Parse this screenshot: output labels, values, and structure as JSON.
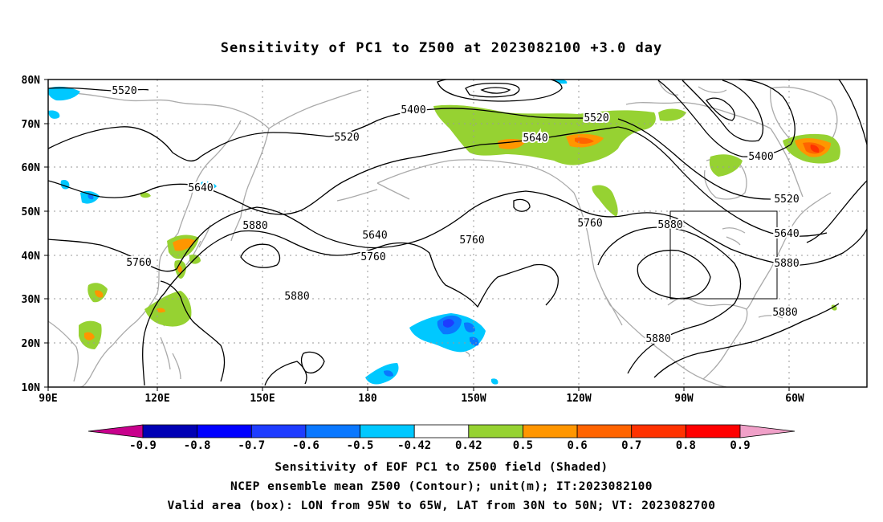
{
  "title": "Sensitivity of PC1 to Z500 at 2023082100 +3.0 day",
  "lat_labels": [
    "80N",
    "70N",
    "60N",
    "50N",
    "40N",
    "30N",
    "20N",
    "10N"
  ],
  "lon_labels": [
    "90E",
    "120E",
    "150E",
    "180",
    "150W",
    "120W",
    "90W",
    "60W"
  ],
  "contour_labels": [
    {
      "text": "5520"
    },
    {
      "text": "5400"
    },
    {
      "text": "5520"
    },
    {
      "text": "5520"
    },
    {
      "text": "5640"
    },
    {
      "text": "5640"
    },
    {
      "text": "5400"
    },
    {
      "text": "5520"
    },
    {
      "text": "5880"
    },
    {
      "text": "5640"
    },
    {
      "text": "5760"
    },
    {
      "text": "5880"
    },
    {
      "text": "5760"
    },
    {
      "text": "5880"
    },
    {
      "text": "5640"
    },
    {
      "text": "5760"
    },
    {
      "text": "5760"
    },
    {
      "text": "5880"
    },
    {
      "text": "5880"
    },
    {
      "text": "5880"
    }
  ],
  "colorbar": {
    "colors": [
      "#c8008c",
      "#0000b4",
      "#0000ff",
      "#1e3cff",
      "#0a78ff",
      "#00c8ff",
      "#ffffff",
      "#96d232",
      "#ff9600",
      "#ff6400",
      "#ff3200",
      "#ff0000",
      "#f0a0c8"
    ],
    "labels": [
      "-0.9",
      "-0.8",
      "-0.7",
      "-0.6",
      "-0.5",
      "-0.42",
      "0.42",
      "0.5",
      "0.6",
      "0.7",
      "0.8",
      "0.9"
    ]
  },
  "captions": [
    "Sensitivity of EOF PC1 to Z500 field (Shaded)",
    "NCEP ensemble mean Z500 (Contour); unit(m); IT:2023082100",
    "Valid area (box): LON from 95W to 65W, LAT from 30N to 50N; VT: 2023082700"
  ],
  "valid_box": {
    "lon_min": -95,
    "lon_max": -65,
    "lat_min": 30,
    "lat_max": 50
  }
}
